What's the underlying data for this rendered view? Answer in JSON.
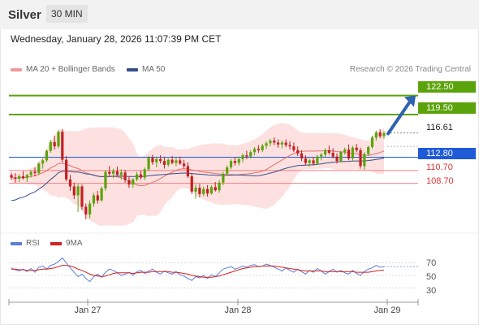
{
  "header": {
    "title": "Silver",
    "period": "30 MIN",
    "timestamp": "Wednesday, January 28, 2026 11:07:39 PM CET"
  },
  "legend": {
    "bollinger_label": "MA 20 + Bollinger Bands",
    "ma50_label": "MA 50",
    "credit": "Research © 2026 Trading Central"
  },
  "colors": {
    "up": "#5ba30a",
    "down": "#c22020",
    "level_green": "#5ba30a",
    "level_blue": "#1f5bd6",
    "level_red": "#f08080",
    "bollinger": "#fde0e0",
    "ma20": "#e07070",
    "ma50": "#34508a",
    "rsi": "#5b7ed8",
    "rsi_ma": "#d42020",
    "arrow": "#2d63b0"
  },
  "chart_data": [
    {
      "type": "candlestick",
      "title": "Silver",
      "x_ticks": [
        "Jan 27",
        "Jan 28",
        "Jan 29"
      ],
      "ylim": [
        102,
        125
      ],
      "levels": [
        {
          "label": "122.50",
          "value": 122.5,
          "style": "resistance"
        },
        {
          "label": "119.50",
          "value": 119.5,
          "style": "resistance"
        },
        {
          "label": "116.61",
          "value": 116.61,
          "style": "last"
        },
        {
          "label": "112.80",
          "value": 112.8,
          "style": "pivot"
        },
        {
          "label": "110.70",
          "value": 110.7,
          "style": "support"
        },
        {
          "label": "108.70",
          "value": 108.7,
          "style": "support"
        }
      ],
      "candles": [
        [
          110.0,
          110.4,
          109.2,
          109.6
        ],
        [
          109.6,
          110.3,
          108.8,
          109.4
        ],
        [
          109.4,
          110.1,
          108.9,
          109.8
        ],
        [
          109.8,
          110.6,
          109.3,
          109.5
        ],
        [
          109.5,
          110.2,
          108.9,
          110.0
        ],
        [
          110.0,
          110.7,
          109.6,
          110.5
        ],
        [
          110.5,
          111.2,
          109.8,
          110.3
        ],
        [
          110.3,
          112.0,
          110.0,
          111.8
        ],
        [
          111.8,
          112.6,
          111.0,
          112.3
        ],
        [
          112.3,
          114.0,
          112.0,
          113.8
        ],
        [
          113.8,
          115.5,
          113.5,
          115.2
        ],
        [
          115.2,
          116.2,
          114.0,
          114.5
        ],
        [
          114.5,
          117.0,
          114.2,
          116.8
        ],
        [
          116.8,
          117.2,
          112.0,
          112.4
        ],
        [
          112.4,
          113.0,
          109.0,
          109.3
        ],
        [
          109.3,
          110.0,
          107.5,
          108.2
        ],
        [
          108.2,
          108.8,
          106.2,
          106.8
        ],
        [
          106.8,
          108.6,
          104.2,
          108.2
        ],
        [
          108.2,
          108.5,
          104.5,
          105.0
        ],
        [
          105.0,
          105.5,
          103.0,
          103.8
        ],
        [
          103.8,
          106.0,
          103.2,
          105.5
        ],
        [
          105.5,
          107.2,
          105.0,
          106.8
        ],
        [
          106.8,
          107.5,
          105.5,
          106.0
        ],
        [
          106.0,
          108.2,
          105.8,
          107.9
        ],
        [
          107.9,
          110.8,
          107.5,
          110.5
        ],
        [
          110.5,
          111.4,
          109.8,
          110.2
        ],
        [
          110.2,
          111.0,
          109.5,
          110.6
        ],
        [
          110.6,
          111.3,
          109.9,
          110.0
        ],
        [
          110.0,
          110.9,
          109.3,
          110.4
        ],
        [
          110.4,
          110.8,
          108.8,
          109.2
        ],
        [
          109.2,
          109.8,
          108.0,
          108.5
        ],
        [
          108.5,
          109.5,
          108.0,
          109.3
        ],
        [
          109.3,
          110.5,
          109.0,
          110.1
        ],
        [
          110.1,
          110.7,
          109.3,
          109.6
        ],
        [
          109.6,
          111.2,
          109.2,
          110.9
        ],
        [
          110.9,
          113.0,
          110.6,
          112.7
        ],
        [
          112.7,
          113.2,
          111.6,
          112.0
        ],
        [
          112.0,
          112.9,
          111.2,
          112.5
        ],
        [
          112.5,
          113.1,
          111.8,
          112.2
        ],
        [
          112.2,
          112.8,
          111.0,
          111.6
        ],
        [
          111.6,
          112.6,
          111.3,
          112.4
        ],
        [
          112.4,
          113.0,
          111.7,
          111.9
        ],
        [
          111.9,
          112.7,
          111.4,
          112.3
        ],
        [
          112.3,
          112.9,
          111.6,
          111.8
        ],
        [
          111.8,
          112.4,
          111.0,
          111.4
        ],
        [
          111.4,
          112.0,
          109.5,
          109.8
        ],
        [
          109.8,
          110.3,
          107.0,
          107.4
        ],
        [
          107.4,
          108.5,
          106.3,
          108.0
        ],
        [
          108.0,
          108.6,
          106.5,
          107.0
        ],
        [
          107.0,
          108.2,
          106.7,
          107.8
        ],
        [
          107.8,
          108.4,
          106.6,
          107.1
        ],
        [
          107.1,
          108.4,
          106.9,
          108.1
        ],
        [
          108.1,
          108.9,
          107.4,
          107.6
        ],
        [
          107.6,
          109.2,
          107.2,
          108.8
        ],
        [
          108.8,
          110.5,
          108.4,
          110.2
        ],
        [
          110.2,
          111.5,
          109.9,
          111.2
        ],
        [
          111.2,
          112.5,
          110.9,
          112.2
        ],
        [
          112.2,
          112.8,
          111.5,
          111.9
        ],
        [
          111.9,
          112.9,
          111.5,
          112.5
        ],
        [
          112.5,
          113.4,
          112.0,
          113.1
        ],
        [
          113.1,
          113.8,
          112.5,
          112.9
        ],
        [
          112.9,
          113.9,
          112.6,
          113.6
        ],
        [
          113.6,
          114.4,
          113.1,
          114.1
        ],
        [
          114.1,
          114.7,
          113.5,
          113.9
        ],
        [
          113.9,
          114.9,
          113.6,
          114.6
        ],
        [
          114.6,
          115.3,
          114.1,
          115.0
        ],
        [
          115.0,
          115.7,
          114.5,
          115.4
        ],
        [
          115.4,
          115.9,
          114.7,
          115.1
        ],
        [
          115.1,
          115.6,
          114.3,
          114.8
        ],
        [
          114.8,
          115.4,
          114.2,
          115.1
        ],
        [
          115.1,
          115.6,
          114.4,
          114.7
        ],
        [
          114.7,
          115.3,
          114.0,
          114.5
        ],
        [
          114.5,
          115.1,
          113.6,
          113.9
        ],
        [
          113.9,
          114.5,
          113.0,
          113.4
        ],
        [
          113.4,
          113.9,
          112.2,
          112.6
        ],
        [
          112.6,
          113.1,
          111.5,
          111.9
        ],
        [
          111.9,
          112.6,
          111.3,
          112.3
        ],
        [
          112.3,
          112.8,
          111.5,
          111.8
        ],
        [
          111.8,
          113.2,
          111.6,
          112.9
        ],
        [
          112.9,
          113.5,
          112.3,
          113.2
        ],
        [
          113.2,
          114.2,
          112.8,
          113.9
        ],
        [
          113.9,
          114.6,
          113.2,
          113.5
        ],
        [
          113.5,
          114.2,
          112.6,
          112.9
        ],
        [
          112.9,
          113.4,
          111.8,
          112.2
        ],
        [
          112.2,
          113.8,
          112.0,
          113.6
        ],
        [
          113.6,
          114.3,
          113.2,
          114.0
        ],
        [
          114.0,
          114.8,
          112.3,
          112.6
        ],
        [
          112.6,
          114.6,
          112.2,
          114.3
        ],
        [
          114.3,
          114.9,
          113.6,
          113.9
        ],
        [
          113.9,
          114.3,
          111.0,
          111.4
        ],
        [
          111.4,
          113.6,
          110.8,
          113.3
        ],
        [
          113.3,
          114.6,
          113.0,
          114.4
        ],
        [
          114.4,
          116.2,
          114.1,
          115.9
        ],
        [
          115.9,
          117.0,
          115.4,
          116.7
        ],
        [
          116.7,
          117.2,
          115.8,
          116.1
        ],
        [
          116.1,
          116.9,
          115.7,
          116.61
        ]
      ]
    },
    {
      "type": "line",
      "title": "RSI",
      "ylim": [
        20,
        85
      ],
      "y_ticks": [
        70,
        50,
        30
      ],
      "series": [
        {
          "name": "RSI",
          "values": [
            62,
            59,
            57,
            60,
            56,
            61,
            55,
            63,
            65,
            60,
            66,
            68,
            72,
            78,
            70,
            62,
            55,
            48,
            52,
            45,
            40,
            48,
            52,
            47,
            55,
            60,
            58,
            54,
            50,
            52,
            55,
            50,
            56,
            58,
            53,
            57,
            60,
            55,
            52,
            57,
            54,
            52,
            56,
            51,
            49,
            45,
            42,
            48,
            46,
            50,
            45,
            51,
            48,
            54,
            60,
            62,
            64,
            60,
            62,
            65,
            63,
            66,
            67,
            64,
            65,
            68,
            66,
            63,
            60,
            57,
            62,
            58,
            55,
            60,
            56,
            52,
            58,
            55,
            61,
            57,
            52,
            56,
            60,
            55,
            58,
            54,
            52,
            58,
            53,
            50,
            56,
            60,
            62,
            66,
            63,
            64
          ]
        },
        {
          "name": "9MA",
          "values": [
            60,
            60,
            59,
            59,
            58,
            58,
            58,
            59,
            60,
            60,
            61,
            62,
            64,
            66,
            66,
            65,
            63,
            60,
            58,
            55,
            52,
            50,
            49,
            48,
            49,
            51,
            53,
            54,
            54,
            54,
            54,
            53,
            54,
            55,
            55,
            55,
            56,
            56,
            56,
            56,
            56,
            55,
            55,
            54,
            53,
            52,
            50,
            49,
            48,
            47,
            47,
            47,
            48,
            49,
            51,
            53,
            55,
            57,
            59,
            61,
            62,
            63,
            64,
            64,
            65,
            65,
            65,
            65,
            64,
            63,
            62,
            61,
            60,
            59,
            58,
            57,
            57,
            57,
            57,
            57,
            56,
            56,
            56,
            56,
            56,
            56,
            56,
            56,
            55,
            55,
            55,
            55,
            56,
            57,
            58,
            58
          ]
        }
      ]
    }
  ]
}
